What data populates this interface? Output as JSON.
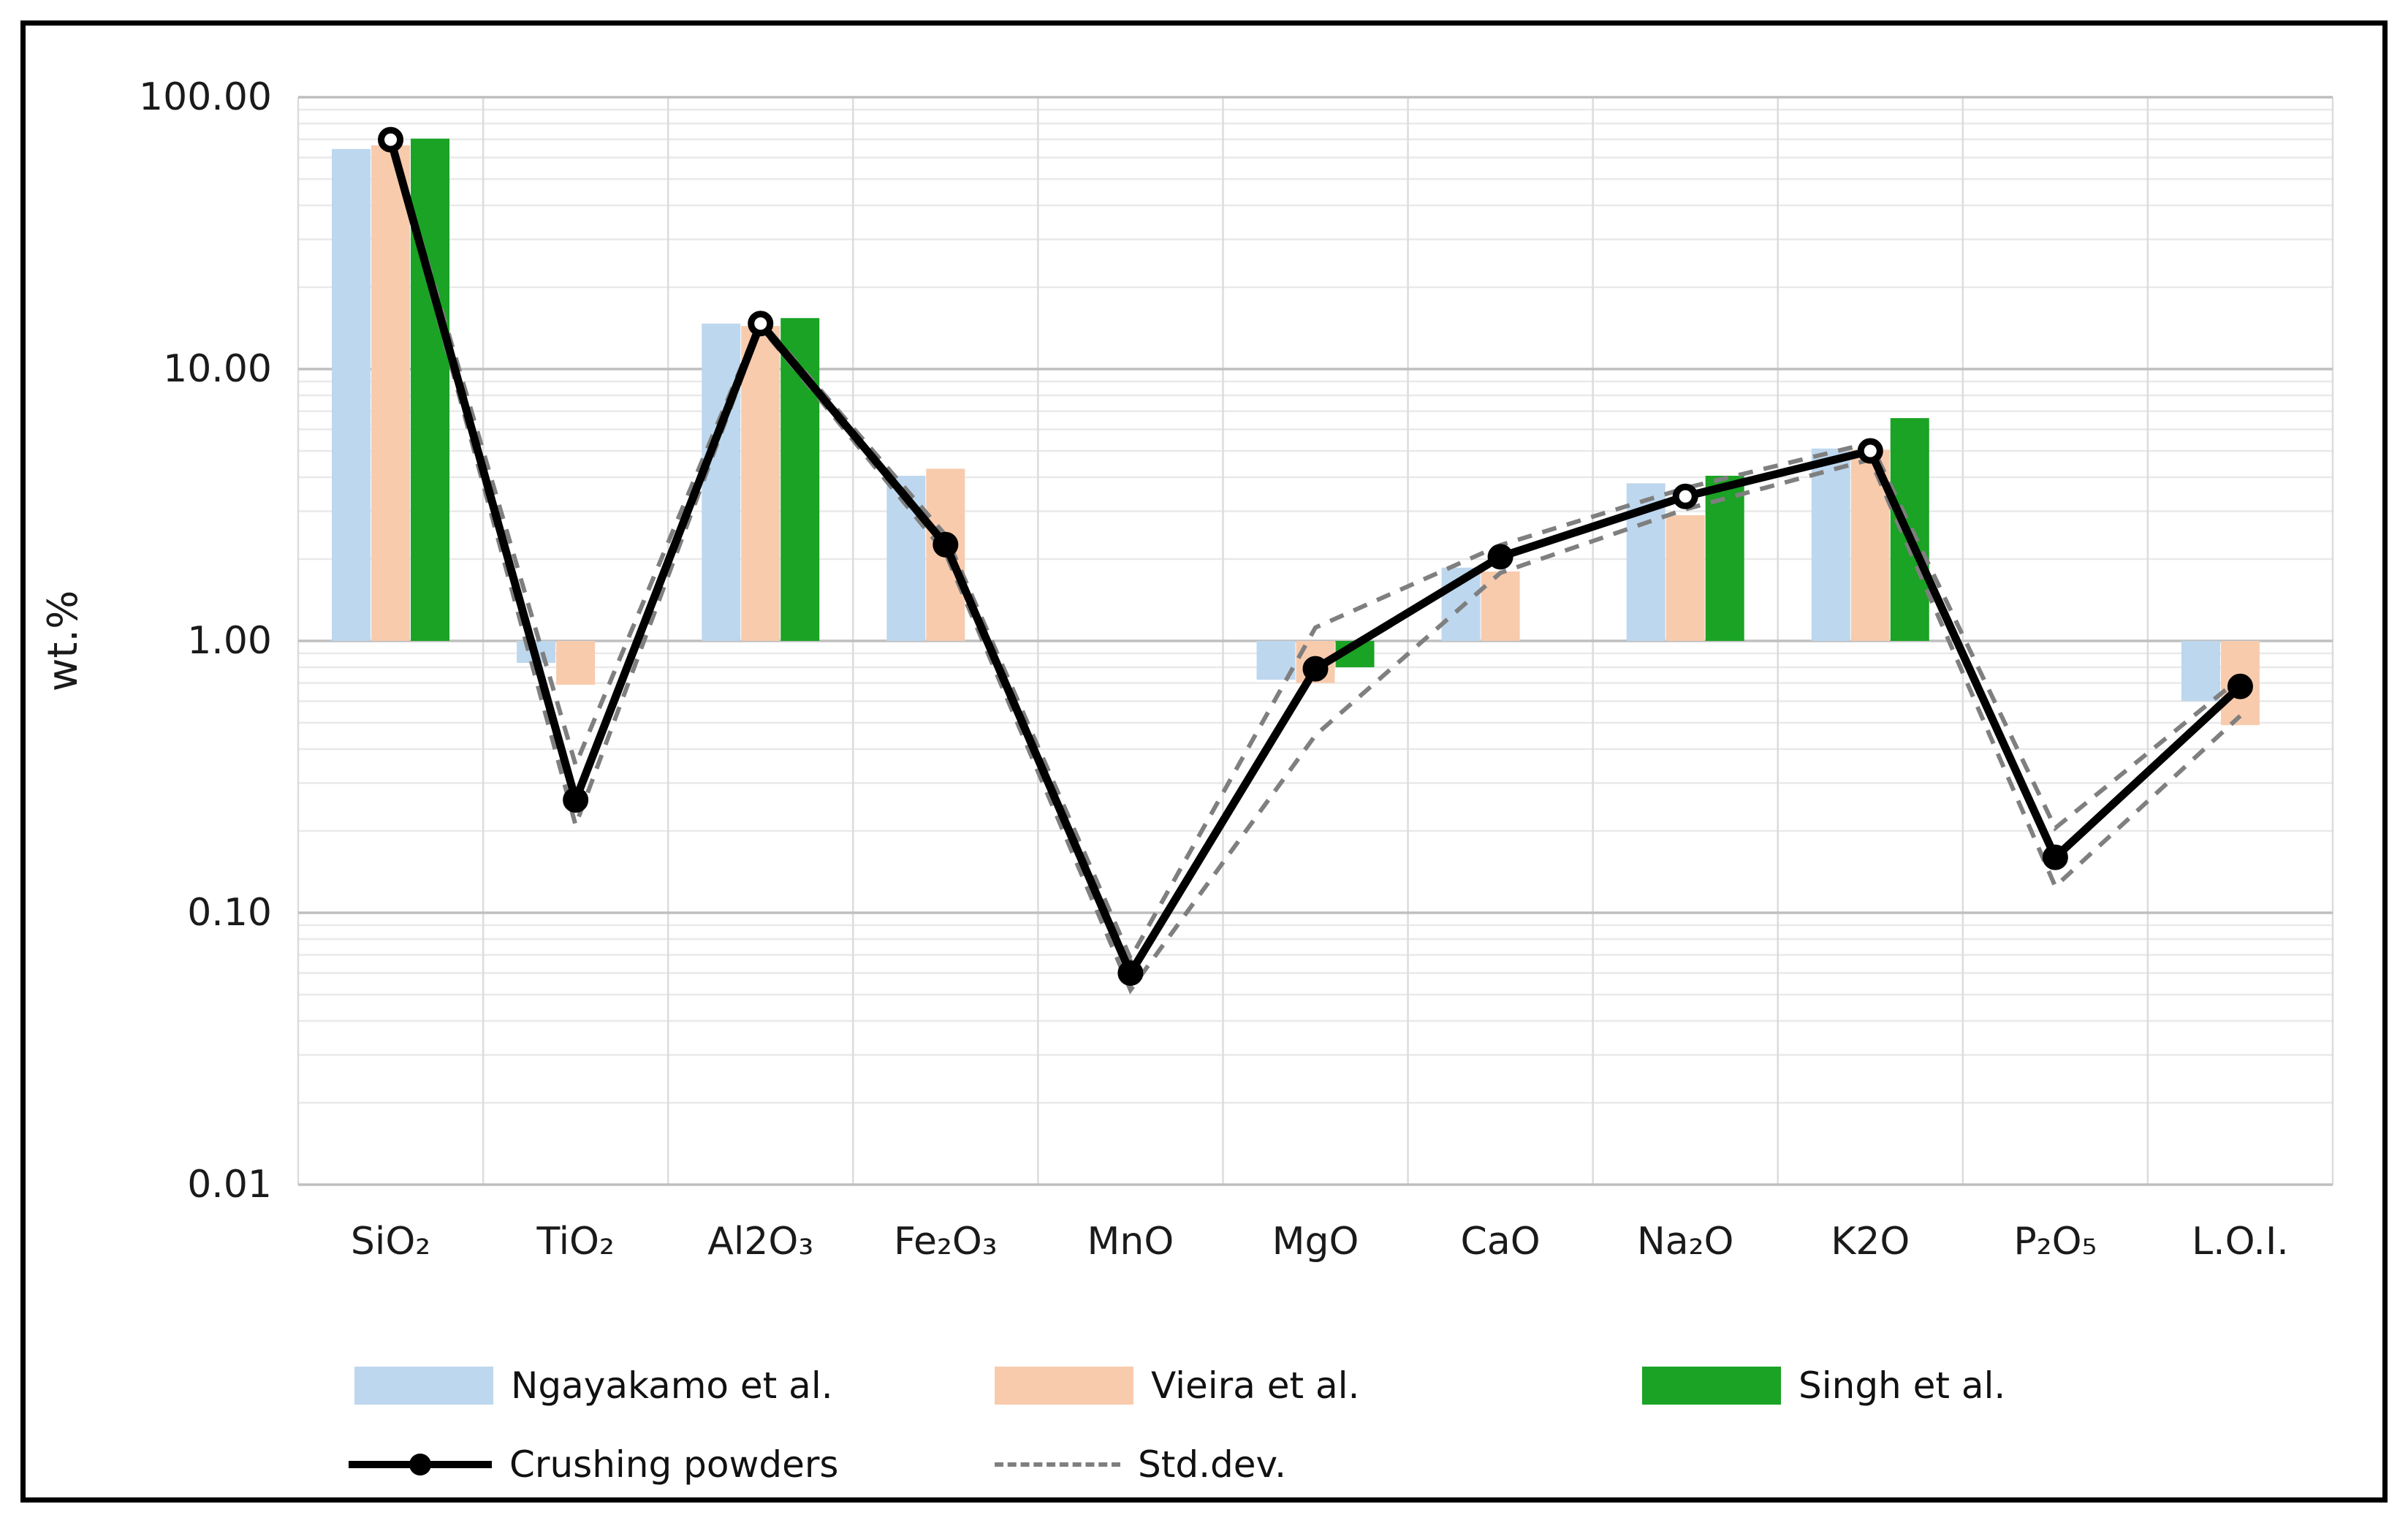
{
  "figure": {
    "type_note": "log-scale oxide composition comparison chart",
    "axis_title": "wt.%"
  },
  "chart_data": {
    "type": "bar",
    "subtype": "grouped-bars-with-line-and-stddev-band",
    "title": "",
    "xlabel": "",
    "ylabel": "wt.%",
    "y_scale": "log",
    "ylim": [
      0.01,
      100
    ],
    "bar_baseline": 1,
    "grid": "major-and-minor-log-horizontal-plus-vertical-category",
    "legend_position": "bottom",
    "y_ticks": [
      {
        "label": "100.00",
        "value": 100
      },
      {
        "label": "10.00",
        "value": 10
      },
      {
        "label": "1.00",
        "value": 1
      },
      {
        "label": "0.10",
        "value": 0.1
      },
      {
        "label": "0.01",
        "value": 0.01
      }
    ],
    "categories": [
      "SiO₂",
      "TiO₂",
      "Al2O₃",
      "Fe₂O₃",
      "MnO",
      "MgO",
      "CaO",
      "Na₂O",
      "K2O",
      "P₂O₅",
      "L.O.I."
    ],
    "series": [
      {
        "name": "Ngayakamo et al.",
        "type": "bar",
        "color": "#BDD7EE",
        "values": [
          64.5,
          0.83,
          14.7,
          4.05,
          null,
          0.72,
          1.86,
          3.8,
          5.1,
          null,
          0.6
        ]
      },
      {
        "name": "Vieira et al.",
        "type": "bar",
        "color": "#F8CBAD",
        "values": [
          66.5,
          0.69,
          14.4,
          4.3,
          null,
          0.7,
          1.8,
          2.9,
          5.05,
          null,
          0.49
        ]
      },
      {
        "name": "Singh et al.",
        "type": "bar",
        "color": "#1AA324",
        "values": [
          70.4,
          null,
          15.4,
          null,
          null,
          0.8,
          null,
          4.05,
          6.6,
          null,
          null
        ]
      },
      {
        "name": "Crushing powders",
        "type": "line",
        "color": "#000000",
        "values": [
          69.8,
          0.26,
          14.7,
          2.26,
          0.06,
          0.79,
          2.04,
          3.4,
          5.0,
          0.16,
          0.68
        ],
        "marker_open": [
          true,
          false,
          true,
          false,
          false,
          false,
          false,
          true,
          true,
          false,
          false
        ]
      },
      {
        "name": "Std.dev.",
        "type": "band",
        "color": "#7F7F7F",
        "upper": [
          71.5,
          0.35,
          15.1,
          2.45,
          0.068,
          1.12,
          2.25,
          3.65,
          5.35,
          0.205,
          0.73
        ],
        "lower": [
          68.0,
          0.21,
          14.3,
          2.1,
          0.052,
          0.45,
          1.78,
          3.05,
          4.65,
          0.125,
          0.53
        ]
      }
    ]
  },
  "legend": {
    "row1_labels": [
      "Ngayakamo et al.",
      "Vieira et al.",
      "Singh et al."
    ],
    "row2_labels": [
      "Crushing powders",
      "Std.dev."
    ]
  }
}
